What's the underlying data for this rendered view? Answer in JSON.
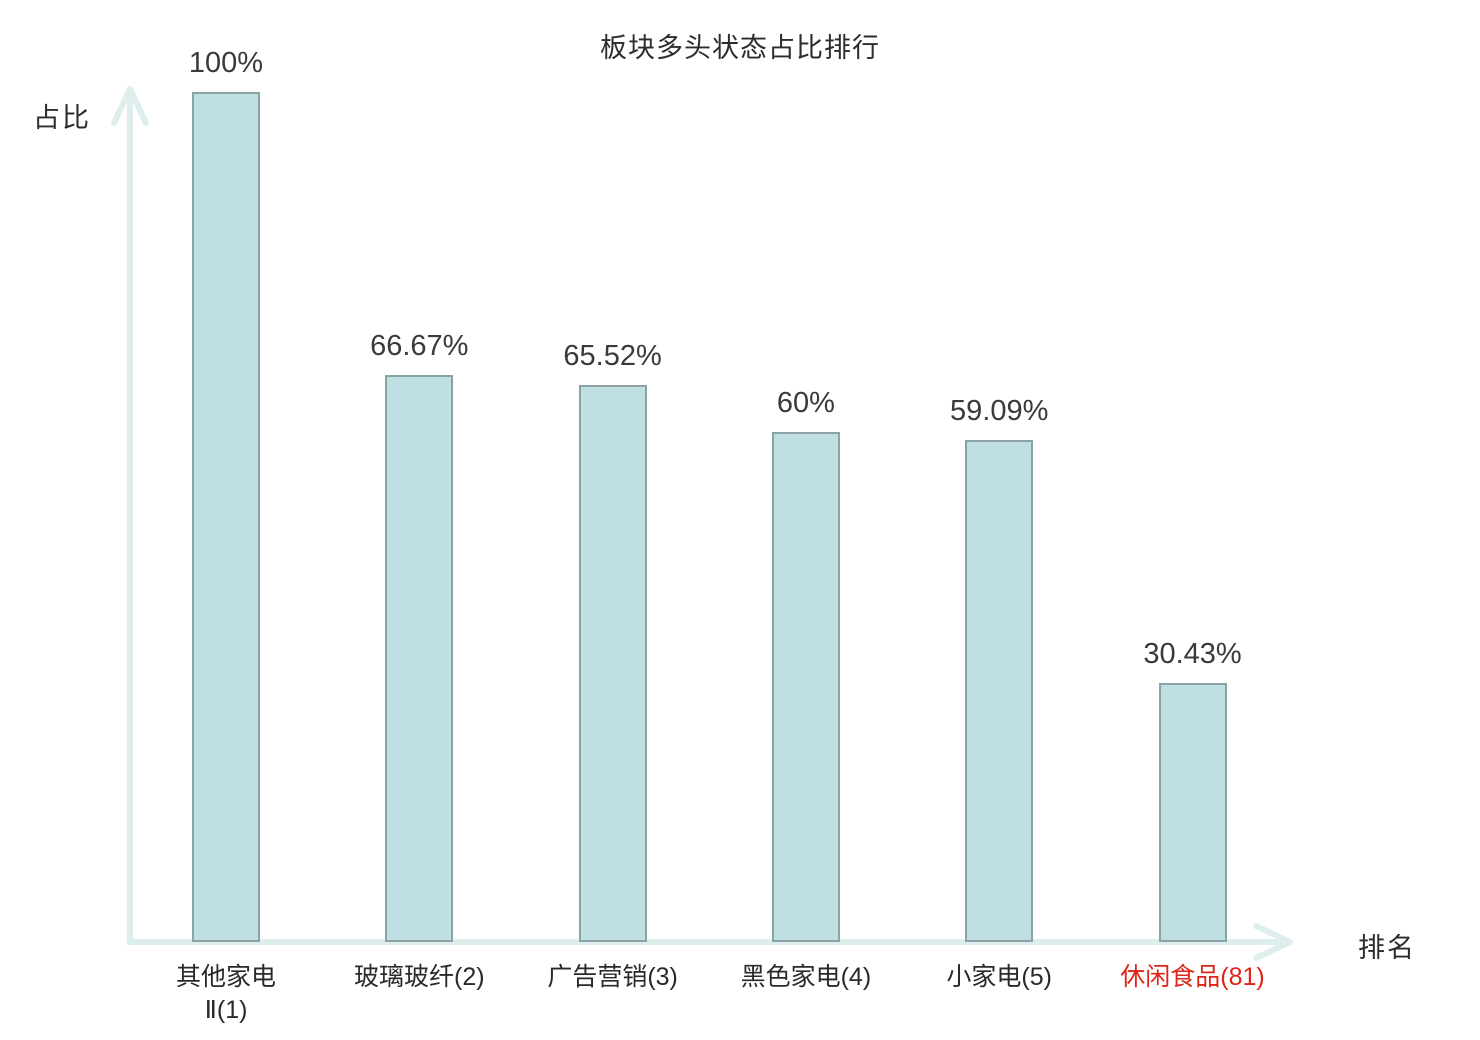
{
  "title": "板块多头状态占比排行",
  "chart_data": {
    "type": "bar",
    "title": "板块多头状态占比排行",
    "xlabel": "排名",
    "ylabel": "占比",
    "ylim": [
      0,
      100
    ],
    "grid": false,
    "legend": "none",
    "categories": [
      "其他家电Ⅱ(1)",
      "玻璃玻纤(2)",
      "广告营销(3)",
      "黑色家电(4)",
      "小家电(5)",
      "休闲食品(81)"
    ],
    "category_display": [
      "其他家电\nⅡ(1)",
      "玻璃玻纤(2)",
      "广告营销(3)",
      "黑色家电(4)",
      "小家电(5)",
      "休闲食品(81)"
    ],
    "values": [
      100,
      66.67,
      65.52,
      60,
      59.09,
      30.43
    ],
    "value_labels": [
      "100%",
      "66.67%",
      "65.52%",
      "60%",
      "59.09%",
      "30.43%"
    ],
    "ranks": [
      1,
      2,
      3,
      4,
      5,
      81
    ],
    "highlight_index": 5,
    "colors": {
      "bar_fill": "#bfdfe3",
      "bar_border": "#8ba2a6",
      "axis": "#ddeeec",
      "value_label": "#3a3a3a",
      "category_label": "#2a2a2a",
      "highlight_label": "#e02417"
    }
  }
}
